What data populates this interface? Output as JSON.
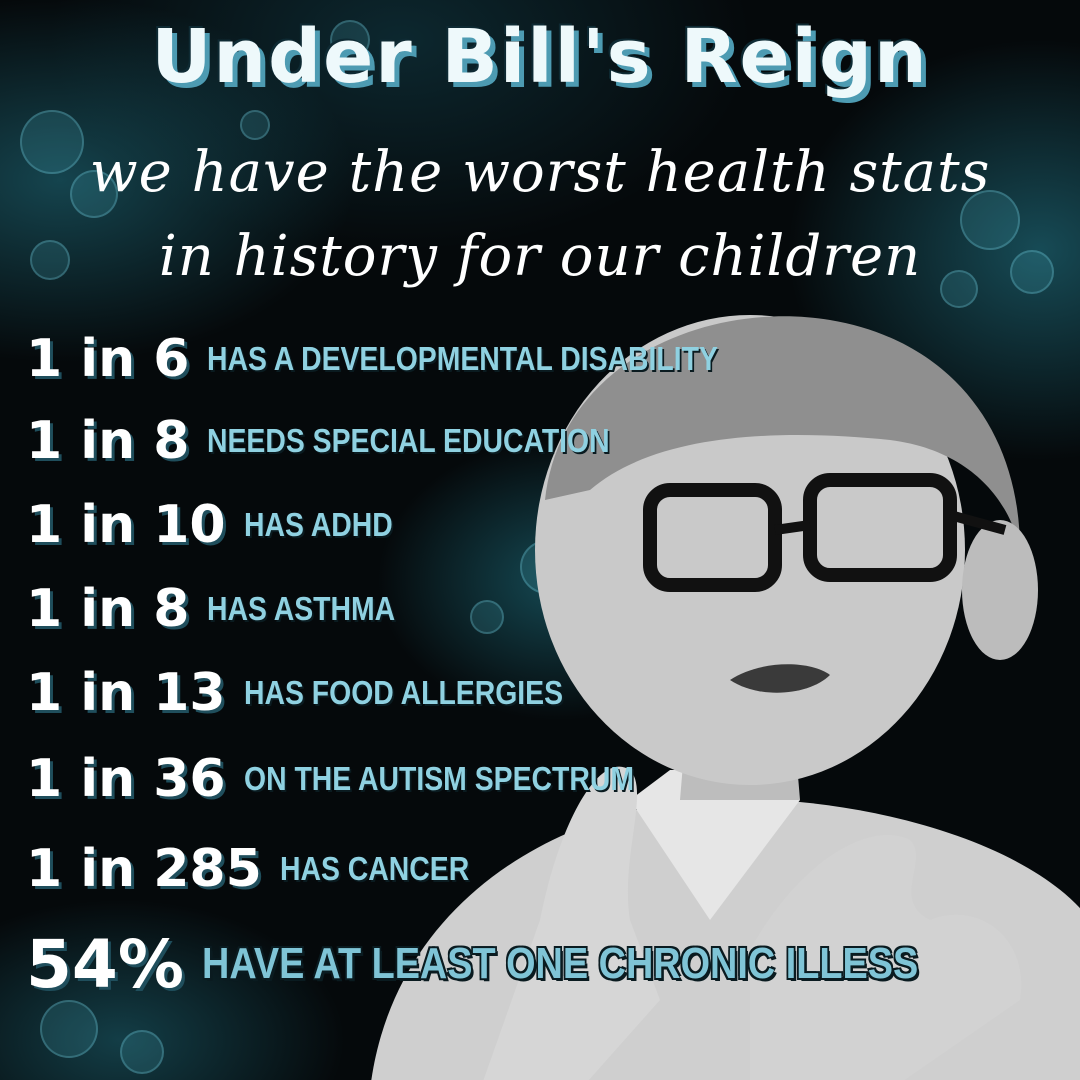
{
  "title": "Under Bill's Reign",
  "subtitle_line1": "we have the worst health stats",
  "subtitle_line2": "in history for our children",
  "stats": [
    {
      "ratio": "1 in 6",
      "text": "HAS A DEVELOPMENTAL DISABILITY"
    },
    {
      "ratio": "1 in 8",
      "text": "NEEDS SPECIAL EDUCATION"
    },
    {
      "ratio": "1 in 10",
      "text": "HAS ADHD"
    },
    {
      "ratio": "1 in 8",
      "text": "HAS ASTHMA"
    },
    {
      "ratio": "1 in 13",
      "text": "HAS FOOD ALLERGIES"
    },
    {
      "ratio": "1 in 36",
      "text": "ON THE AUTISM SPECTRUM"
    },
    {
      "ratio": "1 in 285",
      "text": "HAS CANCER"
    },
    {
      "ratio": "54%",
      "text": "HAVE AT LEAST ONE CHRONIC ILLESS"
    }
  ],
  "colors": {
    "background": "#05090b",
    "accent": "#8fd1e1",
    "title_shadow": "#4d9bb2"
  }
}
